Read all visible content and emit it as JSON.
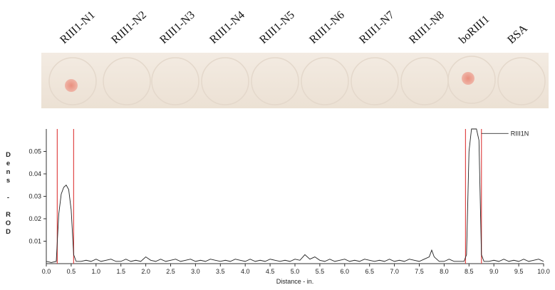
{
  "chart_data": {
    "type": "line",
    "lanes": [
      "RIII1-N1",
      "RIII1-N2",
      "RIII1-N3",
      "RIII1-N4",
      "RIII1-N5",
      "RIII1-N6",
      "RIII1-N7",
      "RIII1-N8",
      "boRIII1",
      "BSA"
    ],
    "xlabel": "Distance - in.",
    "ylabel": "Dens - ROD",
    "x": [
      0.0,
      0.1,
      0.2,
      0.25,
      0.3,
      0.35,
      0.4,
      0.45,
      0.5,
      0.55,
      0.6,
      0.7,
      0.8,
      0.9,
      1.0,
      1.1,
      1.2,
      1.3,
      1.4,
      1.5,
      1.6,
      1.7,
      1.8,
      1.9,
      2.0,
      2.1,
      2.2,
      2.3,
      2.4,
      2.5,
      2.6,
      2.7,
      2.8,
      2.9,
      3.0,
      3.1,
      3.2,
      3.3,
      3.4,
      3.5,
      3.6,
      3.7,
      3.8,
      3.9,
      4.0,
      4.1,
      4.2,
      4.3,
      4.4,
      4.5,
      4.6,
      4.7,
      4.8,
      4.9,
      5.0,
      5.1,
      5.2,
      5.3,
      5.4,
      5.5,
      5.6,
      5.7,
      5.8,
      5.9,
      6.0,
      6.1,
      6.2,
      6.3,
      6.4,
      6.5,
      6.6,
      6.7,
      6.8,
      6.9,
      7.0,
      7.1,
      7.2,
      7.3,
      7.4,
      7.5,
      7.6,
      7.7,
      7.75,
      7.8,
      7.9,
      8.0,
      8.1,
      8.2,
      8.3,
      8.4,
      8.45,
      8.5,
      8.55,
      8.6,
      8.65,
      8.7,
      8.75,
      8.8,
      8.9,
      9.0,
      9.1,
      9.2,
      9.3,
      9.4,
      9.5,
      9.6,
      9.7,
      9.8,
      9.9,
      10.0
    ],
    "series": [
      {
        "color": "#222222",
        "values": [
          0.001,
          0.0005,
          0.001,
          0.022,
          0.031,
          0.034,
          0.035,
          0.033,
          0.024,
          0.004,
          0.001,
          0.001,
          0.0015,
          0.001,
          0.002,
          0.001,
          0.0015,
          0.002,
          0.001,
          0.001,
          0.002,
          0.001,
          0.0015,
          0.001,
          0.003,
          0.0015,
          0.001,
          0.002,
          0.001,
          0.0015,
          0.002,
          0.001,
          0.0015,
          0.002,
          0.001,
          0.0015,
          0.001,
          0.002,
          0.0015,
          0.001,
          0.0015,
          0.001,
          0.002,
          0.0015,
          0.001,
          0.002,
          0.001,
          0.0015,
          0.001,
          0.002,
          0.0015,
          0.001,
          0.0015,
          0.001,
          0.002,
          0.0015,
          0.004,
          0.002,
          0.003,
          0.0015,
          0.001,
          0.002,
          0.001,
          0.0015,
          0.002,
          0.001,
          0.0015,
          0.001,
          0.002,
          0.0015,
          0.001,
          0.0015,
          0.001,
          0.002,
          0.001,
          0.0015,
          0.001,
          0.002,
          0.0015,
          0.001,
          0.002,
          0.003,
          0.006,
          0.003,
          0.001,
          0.001,
          0.002,
          0.001,
          0.001,
          0.001,
          0.004,
          0.05,
          0.06,
          0.06,
          0.06,
          0.055,
          0.004,
          0.001,
          0.001,
          0.0015,
          0.001,
          0.002,
          0.001,
          0.0015,
          0.001,
          0.002,
          0.001,
          0.0015,
          0.002,
          0.001
        ]
      }
    ],
    "markers": [
      0.22,
      0.55,
      8.43,
      8.75
    ],
    "marker_color": "#e04848",
    "annotation": {
      "text": "RIII1N",
      "x": 8.75,
      "y": 0.058
    },
    "xlim": [
      0,
      10
    ],
    "ylim": [
      0,
      0.06
    ],
    "xticks": [
      {
        "value": 0,
        "label": "0.0"
      },
      0.5,
      {
        "value": 1,
        "label": "1.0"
      },
      1.5,
      {
        "value": 2,
        "label": "2.0"
      },
      2.5,
      {
        "value": 3,
        "label": "3.0"
      },
      3.5,
      {
        "value": 4,
        "label": "4.0"
      },
      4.5,
      {
        "value": 5,
        "label": "5.0"
      },
      5.5,
      {
        "value": 6,
        "label": "6.0"
      },
      6.5,
      {
        "value": 7,
        "label": "7.0"
      },
      7.5,
      {
        "value": 8,
        "label": "8.0"
      },
      8.5,
      {
        "value": 9,
        "label": "9.0"
      },
      9.5,
      {
        "value": 10,
        "label": "10.0"
      }
    ],
    "yticks": [
      0.01,
      0.02,
      0.03,
      0.04,
      0.05
    ]
  }
}
